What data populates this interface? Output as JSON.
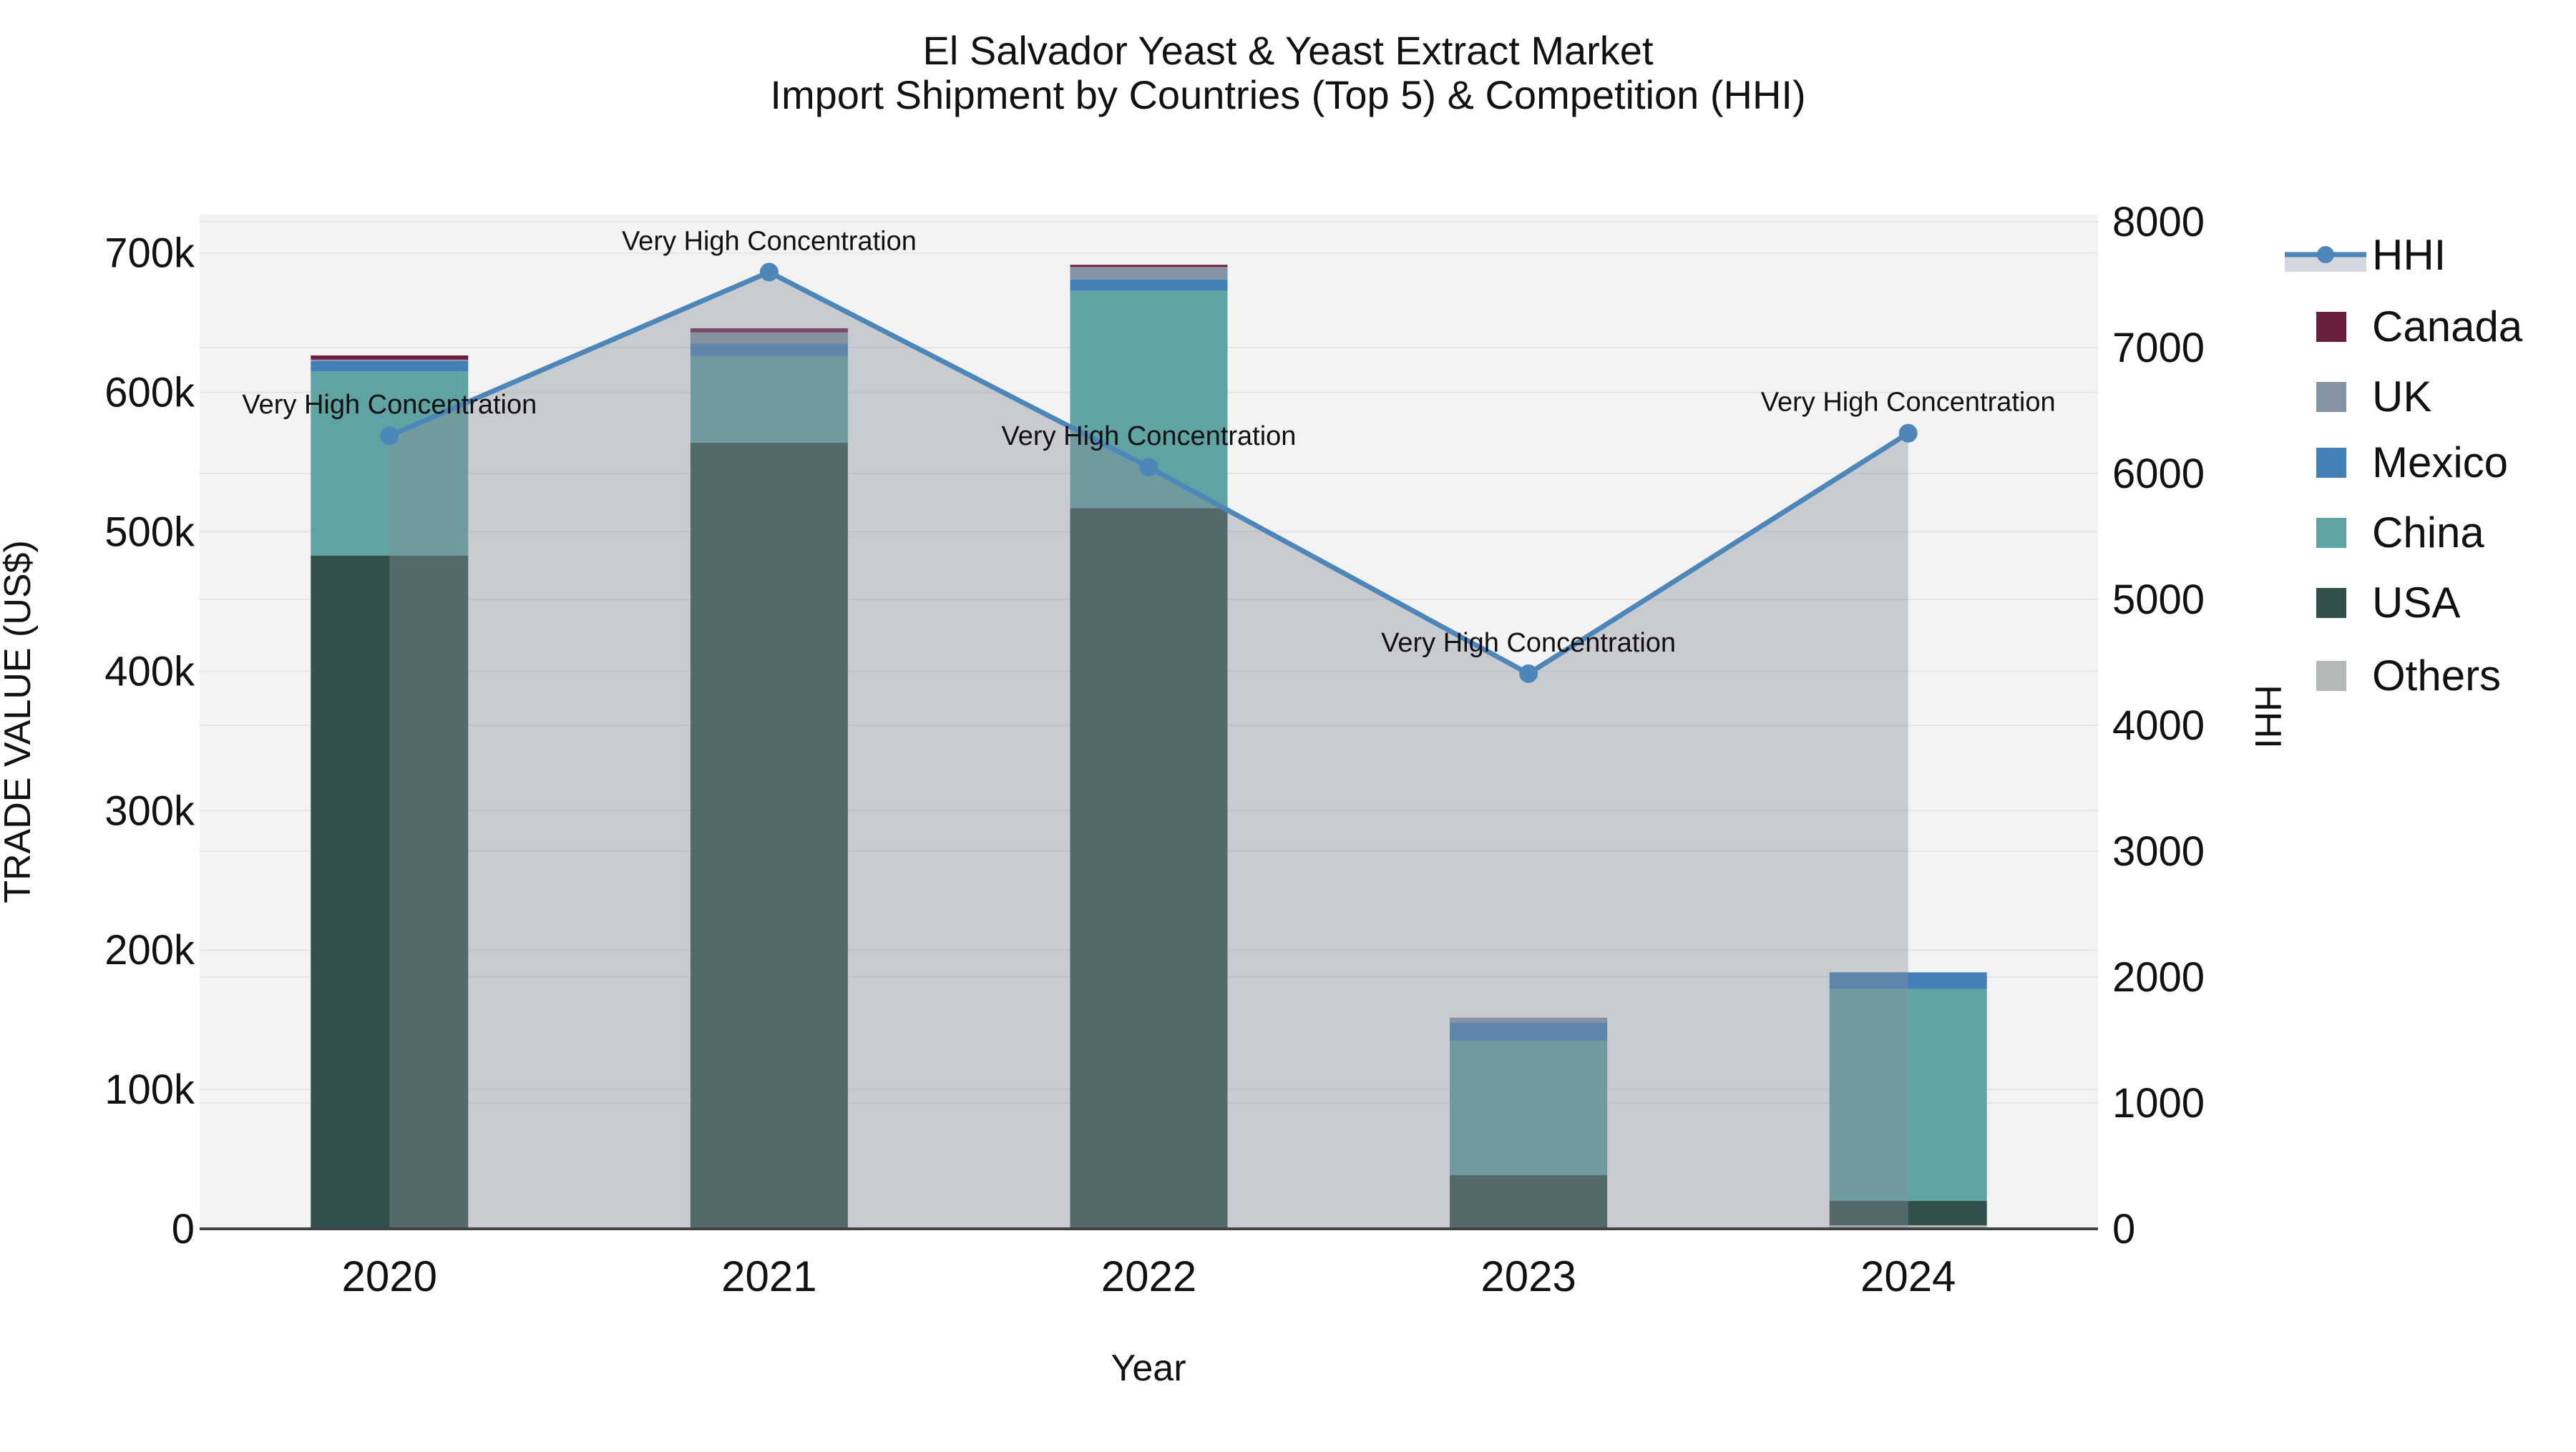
{
  "title": {
    "line1": "El Salvador Yeast & Yeast Extract Market",
    "line2": "Import Shipment by Countries (Top 5) & Competition (HHI)"
  },
  "axes": {
    "x_title": "Year",
    "y_left_title": "TRADE VALUE (US$)",
    "y_right_title": "HHI",
    "y_left_ticks": [
      {
        "value": 0,
        "label": "0"
      },
      {
        "value": 100000,
        "label": "100k"
      },
      {
        "value": 200000,
        "label": "200k"
      },
      {
        "value": 300000,
        "label": "300k"
      },
      {
        "value": 400000,
        "label": "400k"
      },
      {
        "value": 500000,
        "label": "500k"
      },
      {
        "value": 600000,
        "label": "600k"
      },
      {
        "value": 700000,
        "label": "700k"
      }
    ],
    "y_right_ticks": [
      {
        "value": 0,
        "label": "0"
      },
      {
        "value": 1000,
        "label": "1000"
      },
      {
        "value": 2000,
        "label": "2000"
      },
      {
        "value": 3000,
        "label": "3000"
      },
      {
        "value": 4000,
        "label": "4000"
      },
      {
        "value": 5000,
        "label": "5000"
      },
      {
        "value": 6000,
        "label": "6000"
      },
      {
        "value": 7000,
        "label": "7000"
      },
      {
        "value": 8000,
        "label": "8000"
      }
    ]
  },
  "chart_data": {
    "type": "bar+line",
    "categories": [
      "2020",
      "2021",
      "2022",
      "2023",
      "2024"
    ],
    "xlabel": "Year",
    "ylabel_left": "TRADE VALUE (US$)",
    "ylabel_right": "HHI",
    "ylim_left": [
      0,
      727000
    ],
    "ylim_right": [
      0,
      8060
    ],
    "grid": true,
    "legend_position": "right",
    "series": [
      {
        "name": "Others",
        "color": "#b4b8b8",
        "values": [
          0,
          0,
          0,
          0,
          2500
        ]
      },
      {
        "name": "USA",
        "color": "#31504c",
        "values": [
          483000,
          564000,
          517000,
          38500,
          17500
        ]
      },
      {
        "name": "China",
        "color": "#5fa3a2",
        "values": [
          132000,
          62000,
          156000,
          96500,
          152000
        ]
      },
      {
        "name": "Mexico",
        "color": "#4380b8",
        "values": [
          7500,
          9000,
          8000,
          13000,
          12000
        ]
      },
      {
        "name": "UK",
        "color": "#8494a4",
        "values": [
          1000,
          8000,
          9000,
          3500,
          0
        ]
      },
      {
        "name": "Canada",
        "color": "#6b1f3e",
        "values": [
          3000,
          3000,
          1500,
          0,
          0
        ]
      }
    ],
    "line": {
      "name": "HHI",
      "color": "#4d86b8",
      "fill_color": "rgba(134,142,155,0.4)",
      "values": [
        6300,
        7600,
        6050,
        4410,
        6320
      ]
    },
    "annotations": [
      "Very High Concentration",
      "Very High Concentration",
      "Very High Concentration",
      "Very High Concentration",
      "Very High Concentration"
    ]
  },
  "legend": {
    "items": [
      {
        "label": "HHI",
        "type": "line",
        "color": "#4d86b8",
        "band_color": "#d4d8de"
      },
      {
        "label": "Canada",
        "type": "swatch",
        "color": "#6b1f3e"
      },
      {
        "label": "UK",
        "type": "swatch",
        "color": "#8494a4"
      },
      {
        "label": "Mexico",
        "type": "swatch",
        "color": "#4380b8"
      },
      {
        "label": "China",
        "type": "swatch",
        "color": "#5fa3a2"
      },
      {
        "label": "USA",
        "type": "swatch",
        "color": "#31504c"
      },
      {
        "label": "Others",
        "type": "swatch",
        "color": "#b4b8b8"
      }
    ]
  },
  "colors": {
    "plot_background": "#f3f3f3",
    "gridline": "#e4e4e4",
    "axis_line": "#424242",
    "text": "#111111"
  }
}
